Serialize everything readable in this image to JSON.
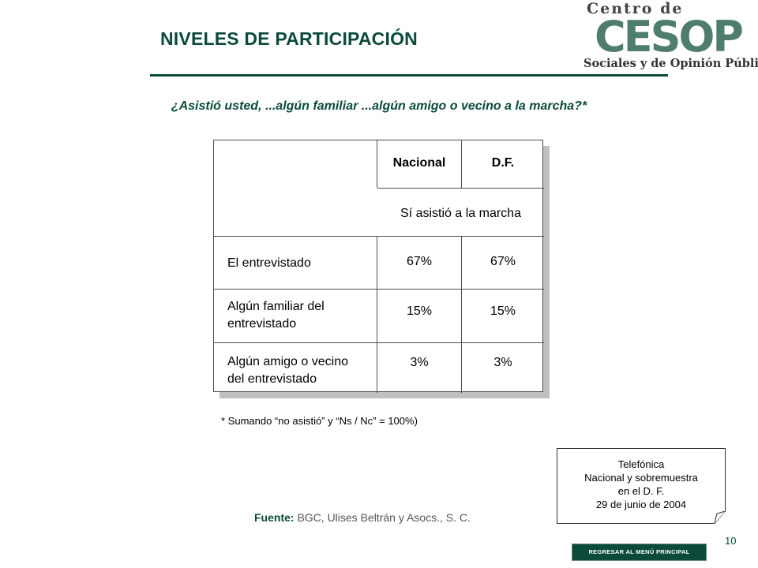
{
  "header": {
    "title": "NIVELES DE PARTICIPACIÓN",
    "logo": {
      "line1": "Centro de Estudios",
      "mark": "CESOP",
      "line2": "Sociales y de Opinión Pública"
    }
  },
  "question": "¿Asistió usted, ...algún familiar ...algún amigo o vecino a la marcha?*",
  "table": {
    "columns": [
      "Nacional",
      "D.F."
    ],
    "subheader": "Sí asistió a la marcha",
    "rows": [
      {
        "label_lines": [
          "El entrevistado"
        ],
        "values": [
          "67%",
          "67%"
        ]
      },
      {
        "label_lines": [
          "Algún familiar del",
          "entrevistado"
        ],
        "values": [
          "15%",
          "15%"
        ]
      },
      {
        "label_lines": [
          "Algún amigo o vecino",
          "del entrevistado"
        ],
        "values": [
          "3%",
          "3%"
        ]
      }
    ]
  },
  "footnote": "* Sumando “no asistió” y “Ns / Nc” = 100%)",
  "note": {
    "lines": [
      "Telefónica",
      "Nacional y sobremuestra",
      "en el D. F.",
      "29 de junio de 2004"
    ]
  },
  "source": {
    "label": "Fuente:",
    "text": " BGC, Ulises Beltrán y Asocs., S. C."
  },
  "page_number": "10",
  "back_button": "REGRESAR AL MENÚ PRINCIPAL",
  "colors": {
    "accent": "#0b4a3b",
    "logo_green": "#4f7d6c",
    "table_border": "#4d4d4d",
    "shadow": "#c0c0c0"
  }
}
